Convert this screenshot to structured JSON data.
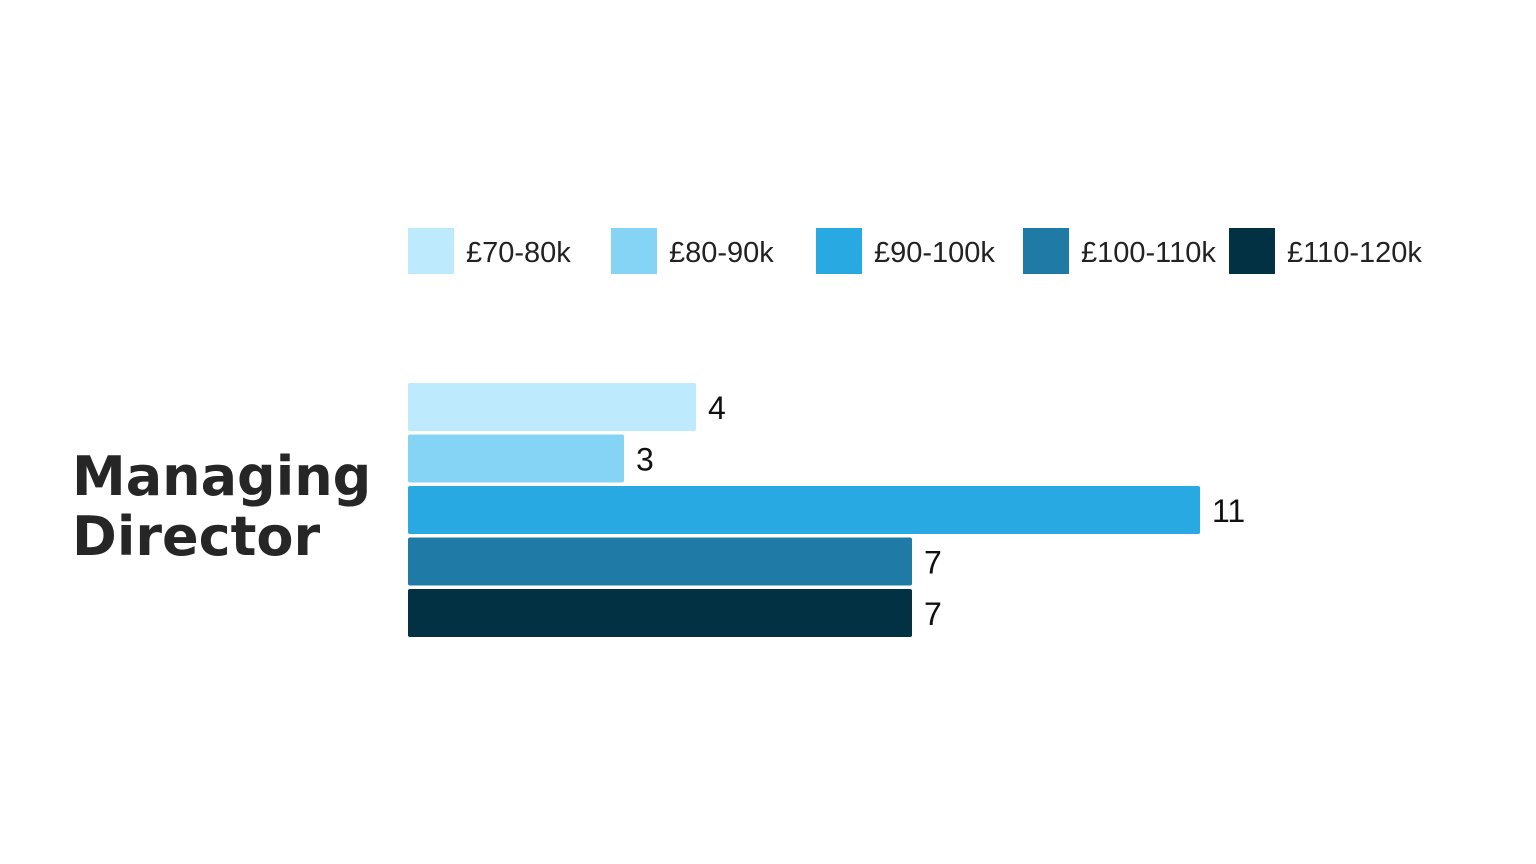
{
  "chart_data": {
    "type": "bar",
    "orientation": "horizontal",
    "categories": [
      "Managing Director"
    ],
    "series": [
      {
        "name": "£70-80k",
        "color": "#bdeafd",
        "values": [
          4
        ]
      },
      {
        "name": "£80-90k",
        "color": "#86d4f5",
        "values": [
          3
        ]
      },
      {
        "name": "£90-100k",
        "color": "#29a9e1",
        "values": [
          11
        ]
      },
      {
        "name": "£100-110k",
        "color": "#1f7ba6",
        "values": [
          7
        ]
      },
      {
        "name": "£110-120k",
        "color": "#023144",
        "values": [
          7
        ]
      }
    ],
    "category_lines": [
      "Managing",
      "Director"
    ],
    "title": "",
    "xlabel": "",
    "ylabel": "",
    "xlim": [
      0,
      11.2
    ],
    "grid": false,
    "legend_position": "top",
    "data_labels": true
  }
}
